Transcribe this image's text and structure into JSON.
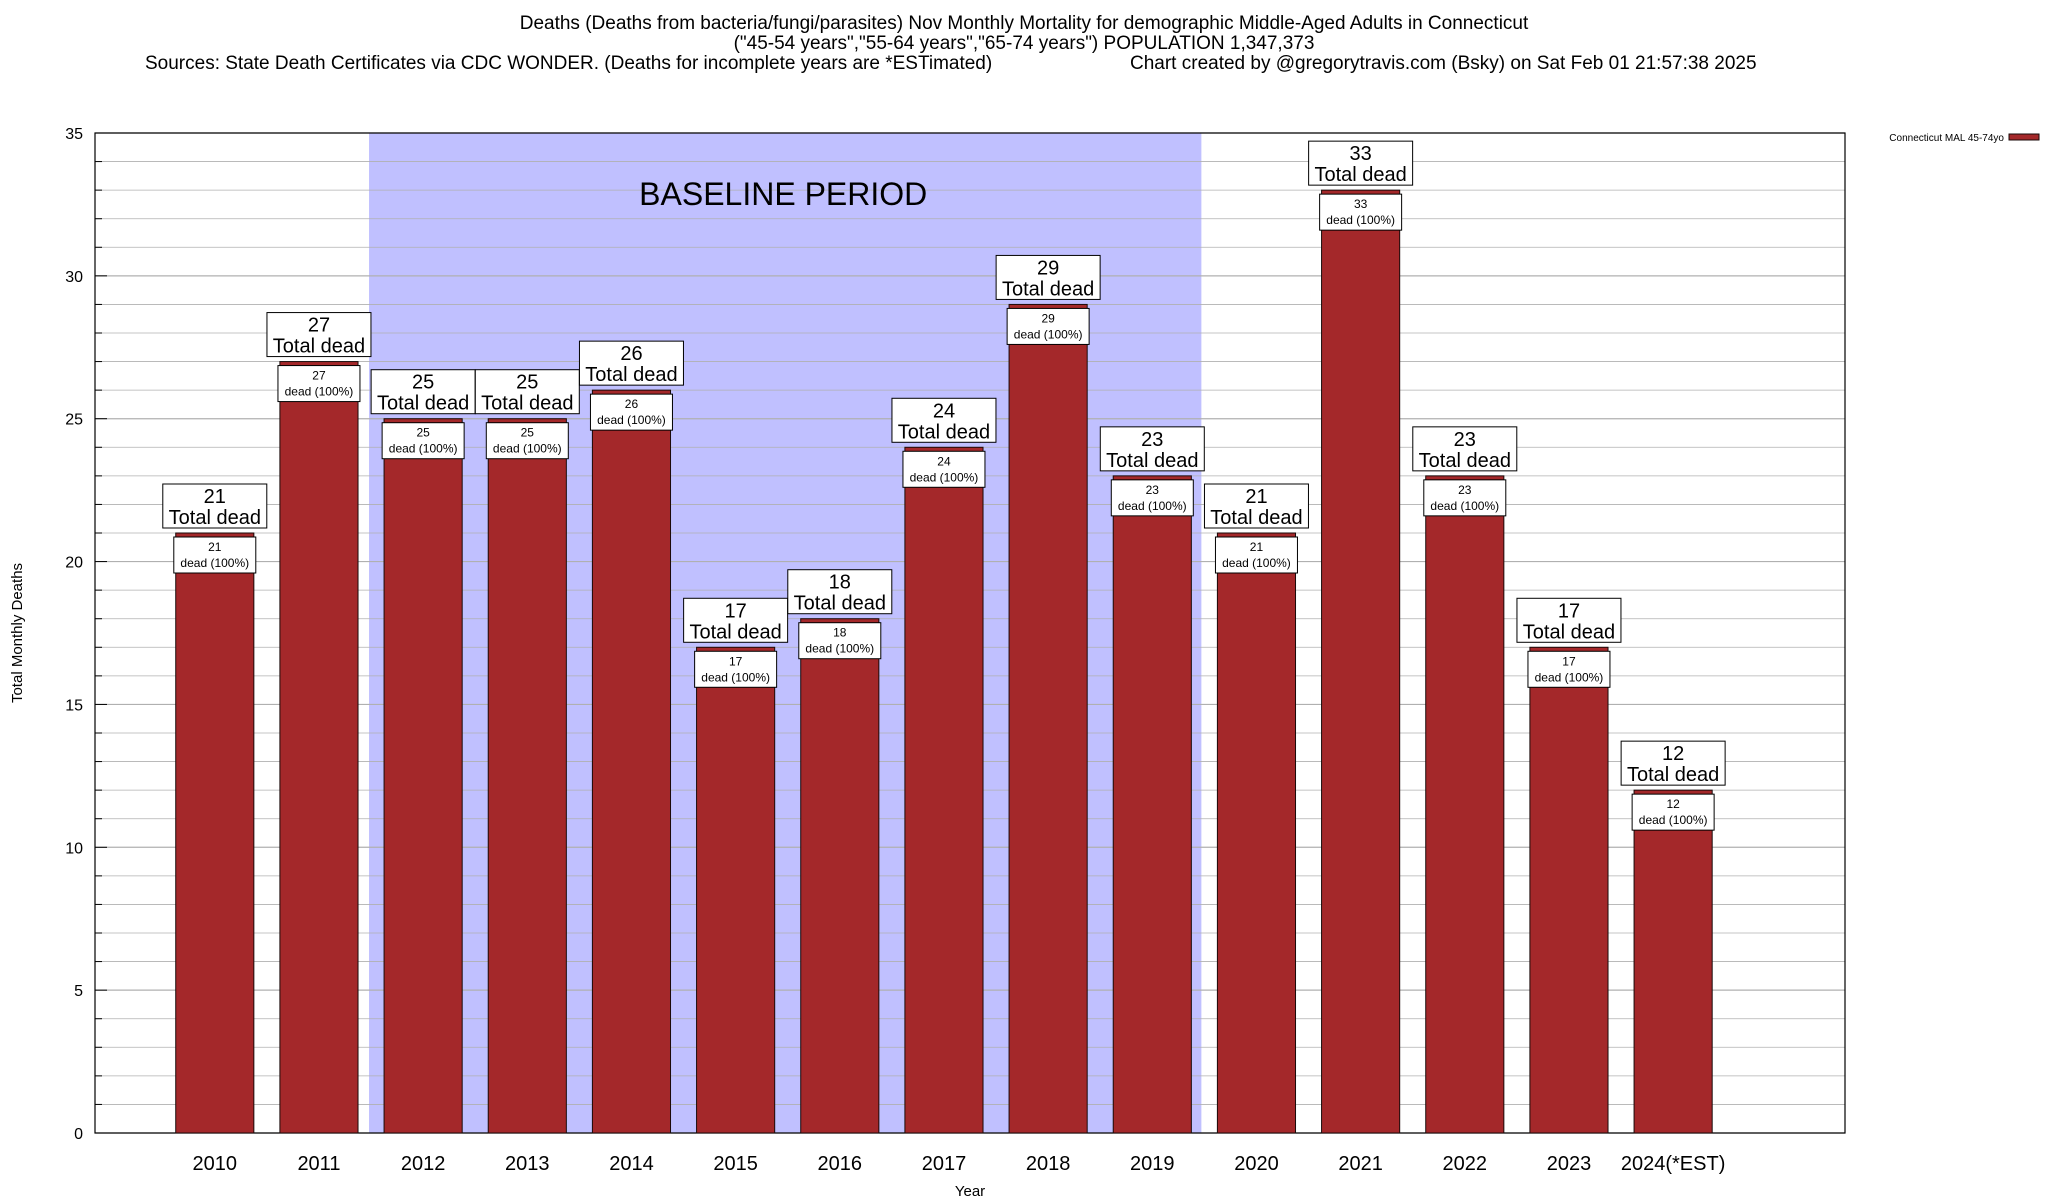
{
  "chart_data": {
    "type": "bar",
    "title_line1": "Deaths (Deaths from bacteria/fungi/parasites) Nov Monthly Mortality for demographic Middle-Aged Adults in Connecticut",
    "title_line2": "(\"45-54 years\",\"55-64 years\",\"65-74 years\") POPULATION 1,347,373",
    "subtitle_sources": "Sources: State Death Certificates via CDC WONDER. (Deaths for incomplete years are *ESTimated)",
    "subtitle_credit": "Chart created by @gregorytravis.com (Bsky) on Sat Feb 01 21:57:38 2025",
    "xlabel": "Year",
    "ylabel": "Total Monthly Deaths",
    "ylim": [
      0,
      35
    ],
    "yticks": [
      0,
      5,
      10,
      15,
      20,
      25,
      30,
      35
    ],
    "grid": true,
    "legend": {
      "label": "Connecticut MAL 45-74yo",
      "placement": "top-right"
    },
    "baseline": {
      "label": "BASELINE PERIOD",
      "from": "2012",
      "to": "2019"
    },
    "categories": [
      "2010",
      "2011",
      "2012",
      "2013",
      "2014",
      "2015",
      "2016",
      "2017",
      "2018",
      "2019",
      "2020",
      "2021",
      "2022",
      "2023",
      "2024(*EST)"
    ],
    "series": [
      {
        "name": "Connecticut MAL 45-74yo",
        "values": [
          21,
          27,
          25,
          25,
          26,
          17,
          18,
          24,
          29,
          23,
          21,
          33,
          23,
          17,
          12
        ]
      }
    ],
    "total_label": "Total dead",
    "inner_label": "dead (100%)"
  },
  "colors": {
    "bar": "#a4282a",
    "bar_edge": "#1a0a0a",
    "baseline_fill": "#c0c0ff",
    "grid": "#b0b0b0",
    "axis": "#000000"
  }
}
